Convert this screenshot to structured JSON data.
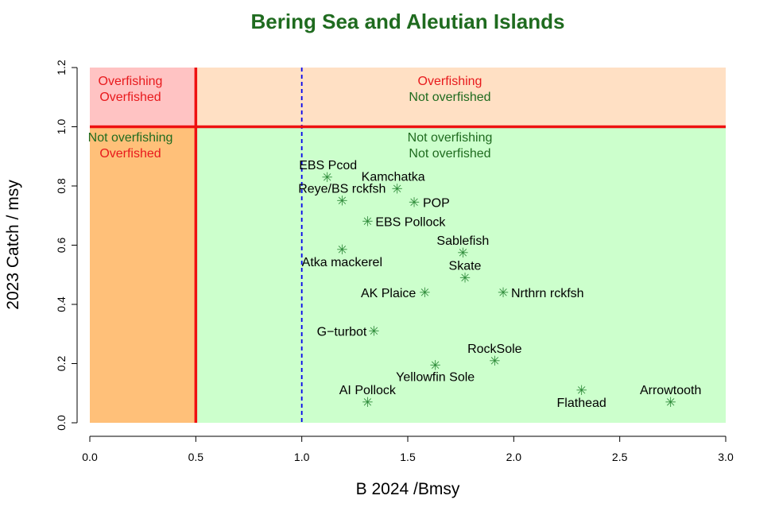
{
  "chart_data": {
    "type": "scatter",
    "title": "Bering Sea and Aleutian Islands",
    "xlabel": "B 2024 /Bmsy",
    "ylabel": "2023 Catch / msy",
    "xlim": [
      0,
      3
    ],
    "ylim": [
      0,
      1.2
    ],
    "x_ticks": [
      "0.0",
      "0.5",
      "1.0",
      "1.5",
      "2.0",
      "2.5",
      "3.0"
    ],
    "y_ticks": [
      "0.0",
      "0.2",
      "0.4",
      "0.6",
      "0.8",
      "1.0",
      "1.2"
    ],
    "thresholds": {
      "overfishing_catch": 1.0,
      "overfished_biomass": 0.5,
      "target_biomass": 1.0
    },
    "zones": [
      {
        "line1": "Overfishing",
        "line2": "Overfished",
        "color1": "#e8191c",
        "color2": "#e8191c",
        "fill": "#ffc3c3"
      },
      {
        "line1": "Overfishing",
        "line2": "Not overfished",
        "color1": "#e8191c",
        "color2": "#1f6b1f",
        "fill": "#ffe0c4"
      },
      {
        "line1": "Not overfishing",
        "line2": "Overfished",
        "color1": "#1f6b1f",
        "color2": "#e8191c",
        "fill": "#ffc079"
      },
      {
        "line1": "Not overfishing",
        "line2": "Not overfished",
        "color1": "#1f6b1f",
        "color2": "#1f6b1f",
        "fill": "#ccffcc"
      }
    ],
    "points": [
      {
        "name": "EBS Pcod",
        "x": 1.12,
        "y": 0.83
      },
      {
        "name": "Kamchatka",
        "x": 1.45,
        "y": 0.79
      },
      {
        "name": "Reye/BS rckfsh",
        "x": 1.19,
        "y": 0.75
      },
      {
        "name": "POP",
        "x": 1.53,
        "y": 0.745
      },
      {
        "name": "EBS Pollock",
        "x": 1.31,
        "y": 0.68
      },
      {
        "name": "Sablefish",
        "x": 1.76,
        "y": 0.575
      },
      {
        "name": "Atka mackerel",
        "x": 1.19,
        "y": 0.585
      },
      {
        "name": "Skate",
        "x": 1.77,
        "y": 0.49
      },
      {
        "name": "AK Plaice",
        "x": 1.58,
        "y": 0.44
      },
      {
        "name": "Nrthrn rckfsh",
        "x": 1.95,
        "y": 0.44
      },
      {
        "name": "G−turbot",
        "x": 1.34,
        "y": 0.31
      },
      {
        "name": "RockSole",
        "x": 1.91,
        "y": 0.21
      },
      {
        "name": "Yellowfin Sole",
        "x": 1.63,
        "y": 0.195
      },
      {
        "name": "AI Pollock",
        "x": 1.31,
        "y": 0.07
      },
      {
        "name": "Flathead",
        "x": 2.32,
        "y": 0.11
      },
      {
        "name": "Arrowtooth",
        "x": 2.74,
        "y": 0.07
      }
    ],
    "marker_glyph": "✳",
    "colors": {
      "threshold_line": "#ee1111",
      "target_line": "#0000ee",
      "marker": "#2e8b3a"
    }
  }
}
